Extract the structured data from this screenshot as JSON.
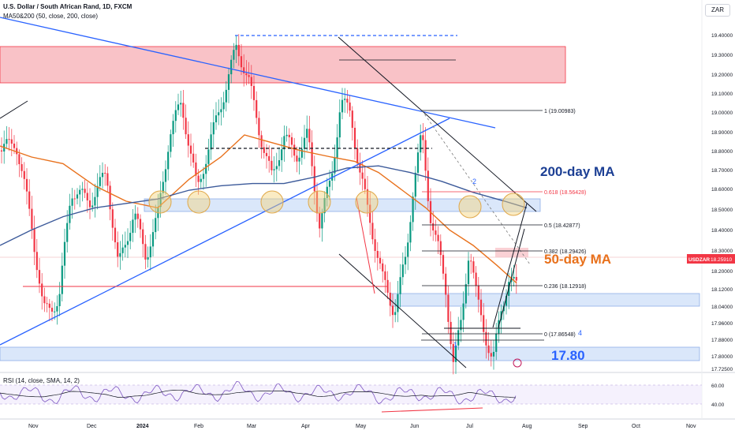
{
  "header": {
    "title": "U.S. Dollar / South African Rand, 1D, FXCM",
    "indicator": "MA50&200 (50, close, 200, close)"
  },
  "rsi_label": "RSI (14, close, SMA, 14, 2)",
  "currency_button": "ZAR",
  "price_badge": {
    "symbol": "USDZAR",
    "value": "18.25910"
  },
  "colors": {
    "bull": "#089981",
    "bear": "#f23645",
    "ma50": "#e8711c",
    "ma200": "#3c5a9a",
    "trend": "#2962ff",
    "zone_red": "#f7b3b9",
    "zone_blue": "#d6e4fa",
    "rsi": "#7e57c2"
  },
  "chart_data": {
    "type": "candlestick",
    "instrument": "USDZAR",
    "timeframe": "1D",
    "y_ticks": [
      "19.40000",
      "19.30000",
      "19.20000",
      "19.10000",
      "19.00000",
      "18.90000",
      "18.80000",
      "18.70000",
      "18.60000",
      "18.50000",
      "18.40000",
      "18.30000",
      "18.20000",
      "18.12000",
      "18.04000",
      "17.96000",
      "17.88000",
      "17.80000",
      "17.72500"
    ],
    "x_ticks": [
      "Nov",
      "Dec",
      "2024",
      "Feb",
      "Mar",
      "Apr",
      "May",
      "Jun",
      "Jul",
      "Aug",
      "Sep",
      "Oct",
      "Nov"
    ],
    "ohlc_key_points": [
      {
        "date": "Nov",
        "close": 18.7
      },
      {
        "date": "Dec",
        "close": 18.55
      },
      {
        "date": "2024",
        "close": 18.6
      },
      {
        "date": "Feb",
        "close": 18.9
      },
      {
        "date": "Mar",
        "close": 19.15
      },
      {
        "date": "Apr",
        "close": 18.75
      },
      {
        "date": "May",
        "close": 18.3
      },
      {
        "date": "Jun",
        "close": 18.8
      },
      {
        "date": "Jul",
        "close": 18.2
      },
      {
        "date": "Aug",
        "close": 18.26
      }
    ],
    "fibonacci": [
      {
        "label": "1 (19.00983)",
        "value": 19.00983
      },
      {
        "label": "0.618 (18.56428)",
        "value": 18.56428
      },
      {
        "label": "0.5 (18.42877)",
        "value": 18.42877
      },
      {
        "label": "0.382 (18.29426)",
        "value": 18.29426
      },
      {
        "label": "0.236 (18.12918)",
        "value": 18.12918
      },
      {
        "label": "0 (17.86548)",
        "value": 17.86548
      }
    ],
    "annotations": [
      "200-day MA",
      "50-day MA",
      "17.80"
    ],
    "wave_labels": [
      "1",
      "2",
      "4"
    ],
    "rsi_ticks": [
      "60.00",
      "40.00"
    ]
  }
}
